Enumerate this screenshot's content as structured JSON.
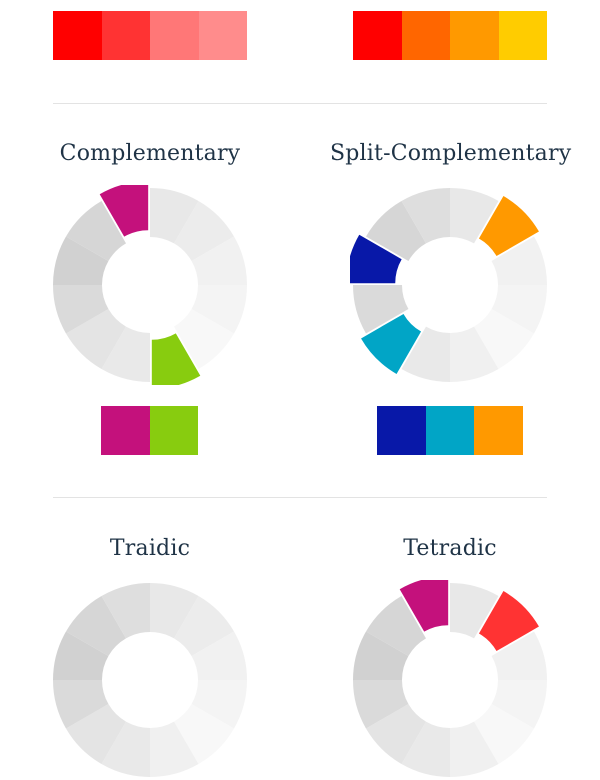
{
  "top_palettes": {
    "left": [
      "#ff0000",
      "#ff3333",
      "#ff7777",
      "#ff8c8c"
    ],
    "right": [
      "#ff0000",
      "#ff6600",
      "#ff9900",
      "#ffcc00"
    ]
  },
  "schemes": [
    {
      "id": "complementary",
      "title": "Complementary",
      "highlight": [
        {
          "segment": 11,
          "color": "#c4117c"
        },
        {
          "segment": 5,
          "color": "#88cc0f"
        }
      ],
      "swatches": [
        "#c4117c",
        "#88cc0f"
      ]
    },
    {
      "id": "split-complementary",
      "title": "Split-Complementary",
      "highlight": [
        {
          "segment": 1,
          "color": "#ff9900"
        },
        {
          "segment": 9,
          "color": "#0818a8"
        },
        {
          "segment": 7,
          "color": "#01a5c6"
        }
      ],
      "swatches": [
        "#0818a8",
        "#01a5c6",
        "#ff9900"
      ]
    },
    {
      "id": "triadic",
      "title": "Traidic",
      "highlight": [],
      "swatches": []
    },
    {
      "id": "tetradic",
      "title": "Tetradic",
      "highlight": [
        {
          "segment": 11,
          "color": "#c4117c"
        },
        {
          "segment": 1,
          "color": "#ff3333"
        }
      ],
      "swatches": []
    }
  ],
  "wheel": {
    "segments": 12,
    "grays": [
      "#e8e8e8",
      "#ececec",
      "#f1f1f1",
      "#f4f4f4",
      "#f8f8f8",
      "#f0f0f0",
      "#e9e9e9",
      "#e4e4e4",
      "#dadada",
      "#d1d1d1",
      "#d6d6d6",
      "#dedede"
    ]
  }
}
